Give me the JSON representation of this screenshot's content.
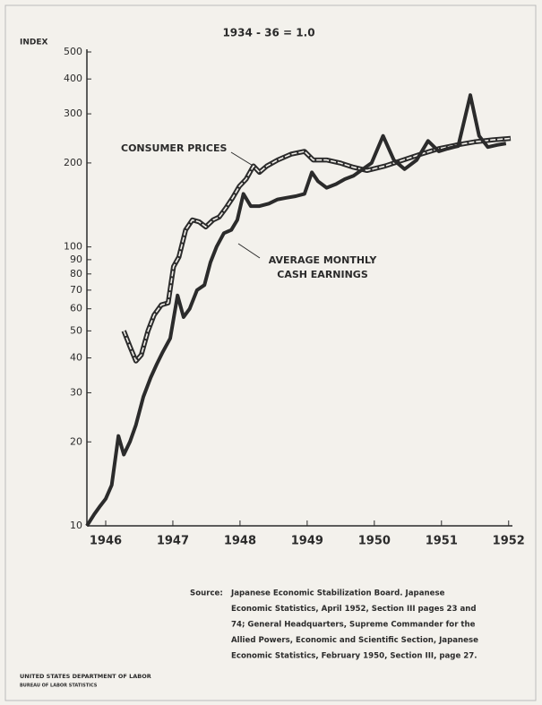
{
  "chart_data": {
    "type": "line",
    "subtitle": "1934 - 36 = 1.0",
    "y_label": "INDEX",
    "log_y": true,
    "ylim": [
      10,
      500
    ],
    "yticks": [
      10,
      20,
      30,
      40,
      50,
      60,
      70,
      80,
      90,
      100,
      200,
      300,
      400,
      500
    ],
    "xlim": [
      1945.72,
      1952.03
    ],
    "xticks": [
      1946,
      1947,
      1948,
      1949,
      1950,
      1951,
      1952
    ],
    "grid": false,
    "series": [
      {
        "style": "double",
        "color": "#2b2b2b",
        "x": [
          1946.27,
          1946.36,
          1946.45,
          1946.53,
          1946.63,
          1946.72,
          1946.83,
          1946.93,
          1947.01,
          1947.09,
          1947.19,
          1947.29,
          1947.39,
          1947.49,
          1947.6,
          1947.69,
          1947.79,
          1947.89,
          1947.99,
          1948.09,
          1948.2,
          1948.29,
          1948.4,
          1948.56,
          1948.76,
          1948.96,
          1949.09,
          1949.29,
          1949.49,
          1949.69,
          1949.89,
          1950.16,
          1950.43,
          1950.69,
          1950.96,
          1951.23,
          1951.49,
          1951.76,
          1952.03
        ],
        "values": [
          50,
          44,
          39,
          41,
          50,
          57,
          62,
          63,
          85,
          92,
          115,
          125,
          123,
          118,
          125,
          128,
          138,
          150,
          165,
          175,
          195,
          185,
          195,
          205,
          215,
          220,
          205,
          205,
          200,
          193,
          188,
          195,
          205,
          215,
          225,
          232,
          238,
          242,
          245
        ]
      },
      {
        "style": "solid",
        "color": "#2b2b2b",
        "x": [
          1945.72,
          1945.83,
          1945.92,
          1946.0,
          1946.09,
          1946.19,
          1946.27,
          1946.36,
          1946.45,
          1946.56,
          1946.67,
          1946.76,
          1946.85,
          1946.96,
          1947.07,
          1947.16,
          1947.25,
          1947.36,
          1947.47,
          1947.56,
          1947.65,
          1947.76,
          1947.87,
          1947.96,
          1948.05,
          1948.16,
          1948.29,
          1948.43,
          1948.56,
          1948.69,
          1948.83,
          1948.96,
          1949.07,
          1949.16,
          1949.29,
          1949.43,
          1949.56,
          1949.69,
          1949.83,
          1949.96,
          1950.13,
          1950.29,
          1950.45,
          1950.63,
          1950.8,
          1950.96,
          1951.09,
          1951.25,
          1951.43,
          1951.56,
          1951.69,
          1951.83,
          1951.96
        ],
        "values": [
          10,
          11,
          11.8,
          12.5,
          14,
          21,
          18,
          20,
          23,
          29,
          34,
          38,
          42,
          47,
          67,
          56,
          60,
          70,
          73,
          88,
          100,
          112,
          115,
          125,
          155,
          140,
          140,
          143,
          148,
          150,
          152,
          155,
          185,
          172,
          163,
          168,
          175,
          180,
          190,
          200,
          250,
          205,
          190,
          205,
          240,
          220,
          225,
          230,
          350,
          250,
          228,
          232,
          235
        ]
      }
    ],
    "annotations": [
      {
        "lines": [
          "CONSUMER PRICES"
        ]
      },
      {
        "lines": [
          "AVERAGE MONTHLY",
          "CASH EARNINGS"
        ]
      }
    ],
    "source": {
      "label": "Source:",
      "lines": [
        "Japanese Economic Stabilization Board. Japanese",
        "Economic Statistics, April 1952, Section III pages 23 and",
        "74; General Headquarters, Supreme Commander for the",
        "Allied Powers, Economic and Scientific Section, Japanese",
        "Economic Statistics, February 1950, Section III, page 27."
      ]
    },
    "footer": [
      "UNITED STATES DEPARTMENT OF LABOR",
      "BUREAU OF LABOR STATISTICS"
    ]
  }
}
